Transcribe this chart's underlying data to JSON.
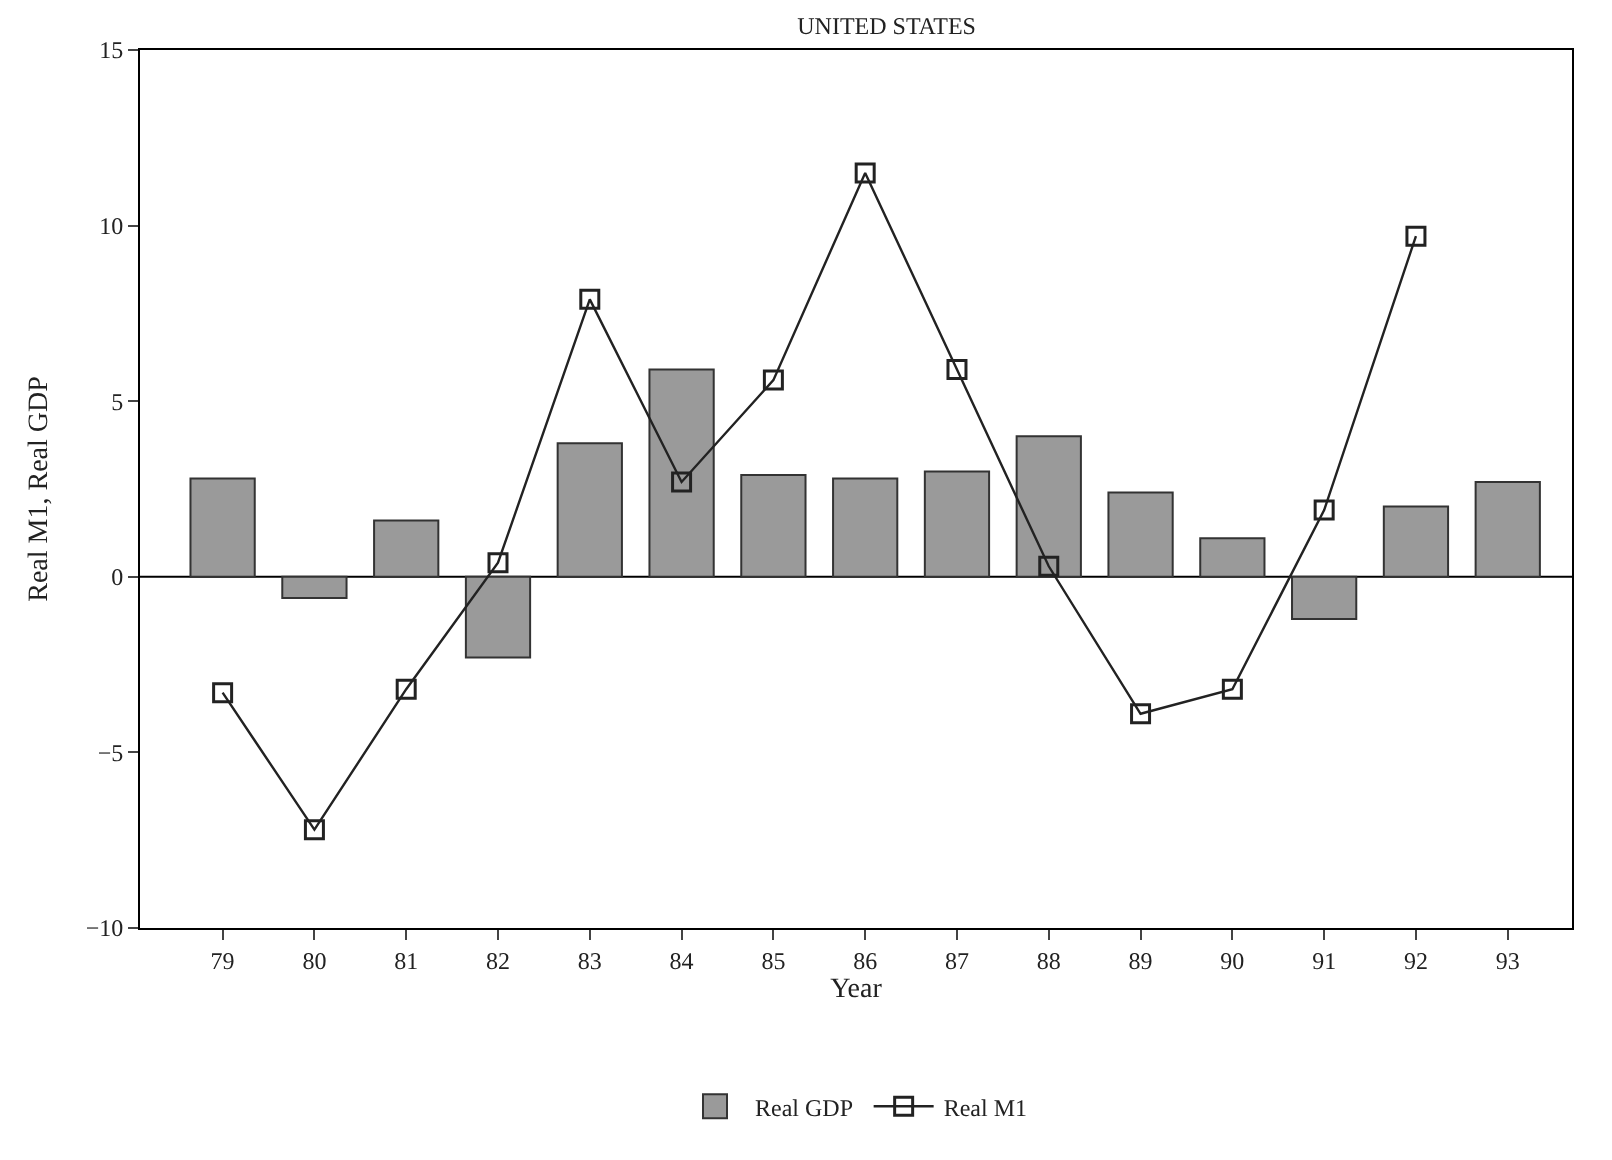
{
  "chart_data": {
    "type": "bar",
    "title": "UNITED STATES",
    "xlabel": "Year",
    "ylabel": "Real M1, Real GDP",
    "categories": [
      "79",
      "80",
      "81",
      "82",
      "83",
      "84",
      "85",
      "86",
      "87",
      "88",
      "89",
      "90",
      "91",
      "92",
      "93"
    ],
    "series": [
      {
        "name": "Real GDP",
        "color": "#9a9a9a",
        "values": [
          2.8,
          -0.6,
          1.6,
          -2.3,
          3.8,
          5.9,
          2.9,
          2.8,
          3.0,
          4.0,
          2.4,
          1.1,
          -1.2,
          2.0,
          2.7
        ]
      },
      {
        "name": "Real M1",
        "type": "line",
        "color": "#222222",
        "marker": "square",
        "values": [
          -3.3,
          -7.2,
          -3.2,
          0.4,
          7.9,
          2.7,
          5.6,
          11.5,
          5.9,
          0.3,
          -3.9,
          -3.2,
          1.9,
          9.7,
          null
        ]
      }
    ],
    "ylim": [
      -10,
      15
    ],
    "yticks": [
      -10,
      -5,
      0,
      5,
      10,
      15
    ],
    "grid": false,
    "legend": "bottom",
    "ref_lines": [
      {
        "axis": "y",
        "value": 0,
        "color": "#000000"
      }
    ]
  }
}
